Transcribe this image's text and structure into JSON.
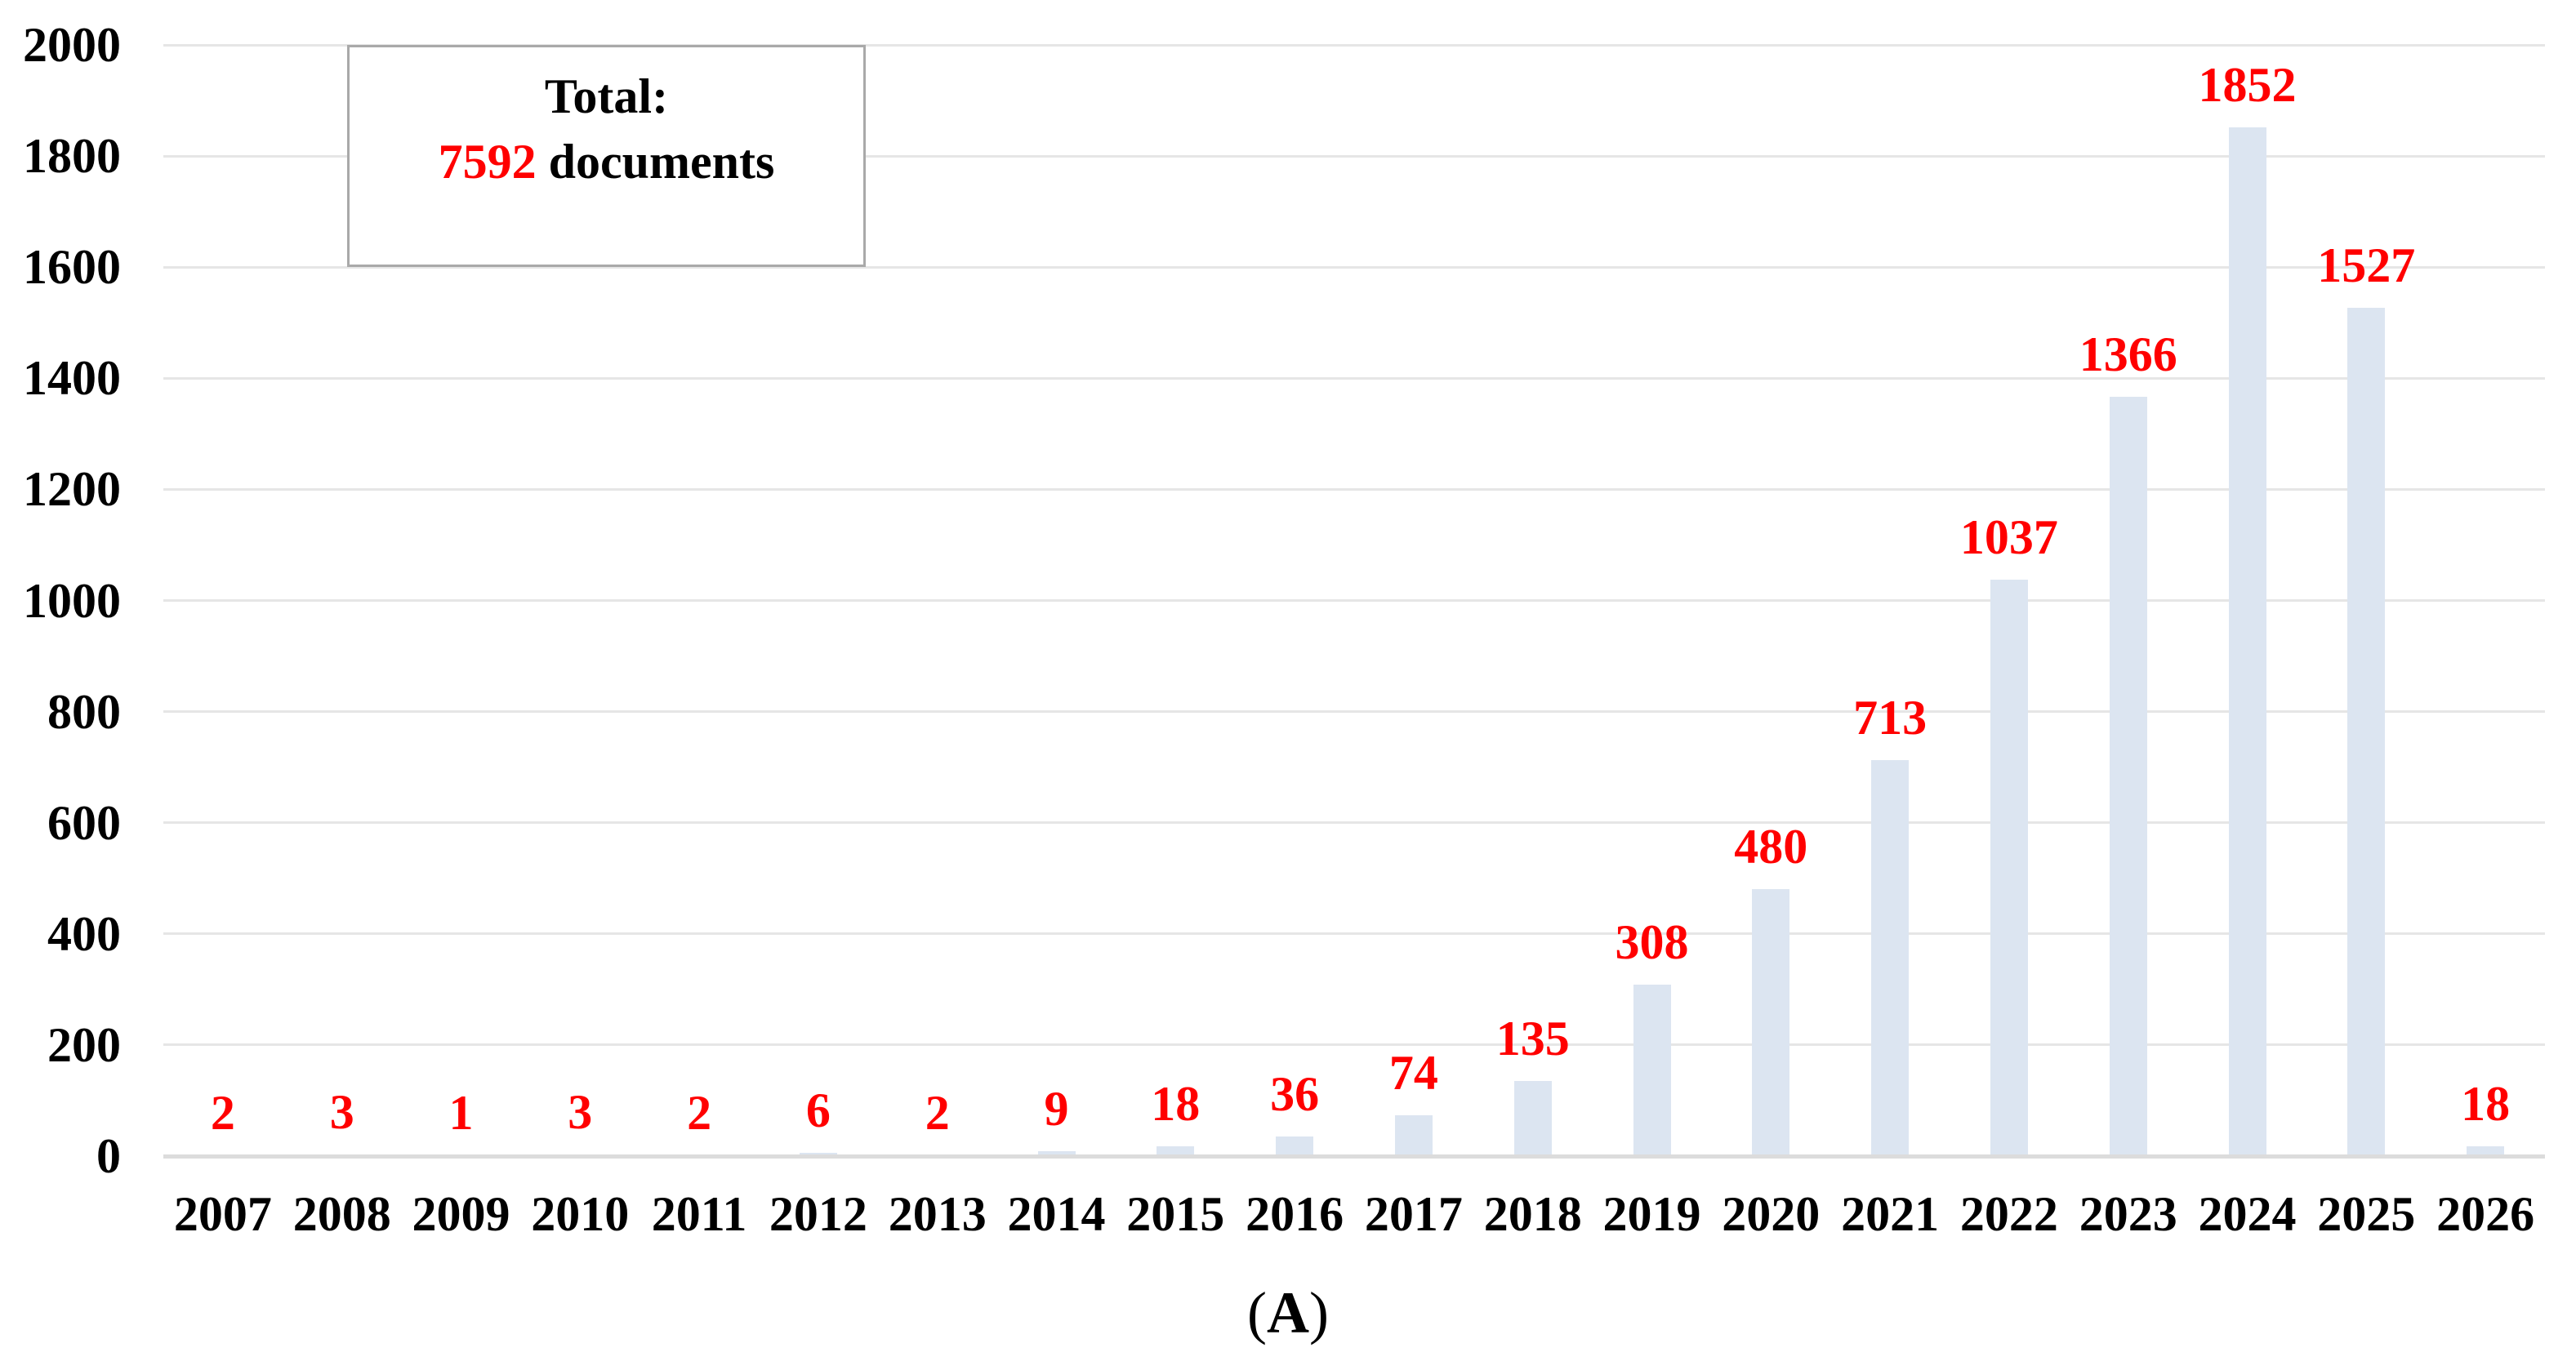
{
  "legend": {
    "title": "Total:",
    "total": "7592",
    "suffix": " documents"
  },
  "caption": {
    "open": "(",
    "letter": "A",
    "close": ")"
  },
  "colors": {
    "value_label": "#ff0000",
    "bar": "#dce5f1",
    "gridline": "#e6e6e6",
    "axis_line": "#dcdcdc",
    "legend_border": "#a9a9a9",
    "text": "#000000"
  },
  "chart_data": {
    "type": "bar",
    "title": "",
    "xlabel": "",
    "ylabel": "",
    "categories": [
      "2007",
      "2008",
      "2009",
      "2010",
      "2011",
      "2012",
      "2013",
      "2014",
      "2015",
      "2016",
      "2017",
      "2018",
      "2019",
      "2020",
      "2021",
      "2022",
      "2023",
      "2024",
      "2025",
      "2026"
    ],
    "values": [
      2,
      3,
      1,
      3,
      2,
      6,
      2,
      9,
      18,
      36,
      74,
      135,
      308,
      480,
      713,
      1037,
      1366,
      1852,
      1527,
      18
    ],
    "bar_value_labels": [
      "2",
      "3",
      "1",
      "3",
      "2",
      "6",
      "2",
      "9",
      "18",
      "36",
      "74",
      "135",
      "308",
      "480",
      "713",
      "1037",
      "1366",
      "1852",
      "1527",
      "18"
    ],
    "yticks": [
      "0",
      "200",
      "400",
      "600",
      "800",
      "1000",
      "1200",
      "1400",
      "1600",
      "1800",
      "2000"
    ],
    "ytick_values": [
      0,
      200,
      400,
      600,
      800,
      1000,
      1200,
      1400,
      1600,
      1800,
      2000
    ],
    "ylim": [
      0,
      2000
    ],
    "grid": true,
    "legend_position": "top-left",
    "annotation": "Total: 7592 documents"
  }
}
